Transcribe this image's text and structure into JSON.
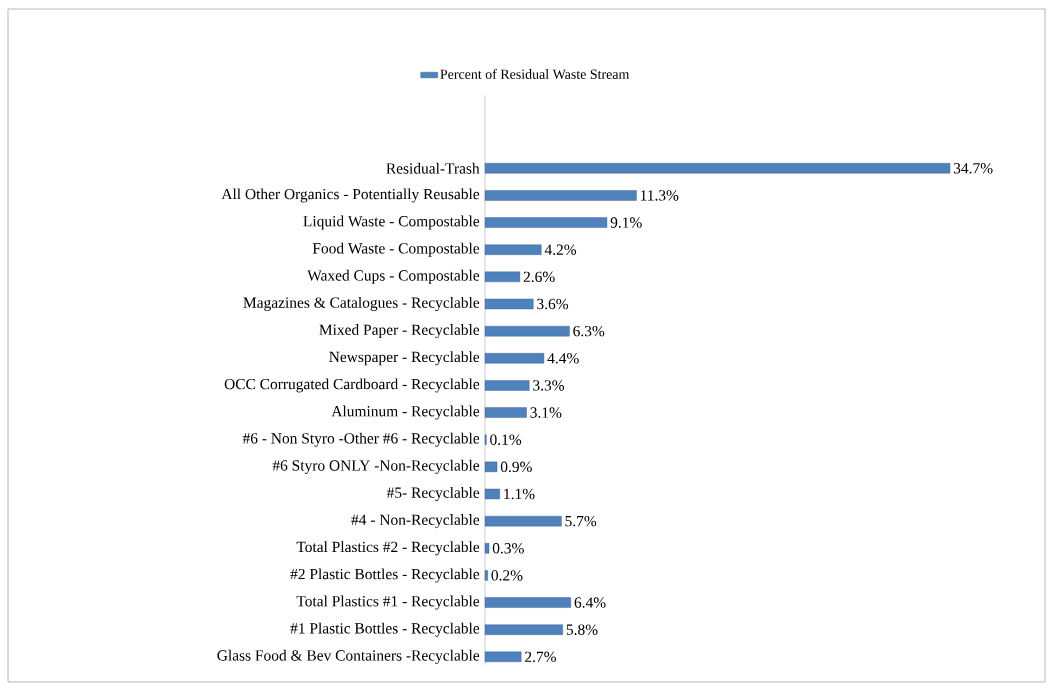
{
  "chart_data": {
    "type": "bar",
    "orientation": "horizontal",
    "legend": "top",
    "categories": [
      "Residual-Trash",
      "All Other Organics - Potentially Reusable",
      "Liquid Waste - Compostable",
      "Food Waste - Compostable",
      "Waxed Cups - Compostable",
      "Magazines & Catalogues - Recyclable",
      "Mixed Paper - Recyclable",
      "Newspaper - Recyclable",
      "OCC Corrugated Cardboard - Recyclable",
      "Aluminum - Recyclable",
      "#6 - Non Styro -Other #6 - Recyclable",
      "#6 Styro ONLY -Non-Recyclable",
      "#5- Recyclable",
      "#4  - Non-Recyclable",
      "Total Plastics #2 - Recyclable",
      "#2 Plastic Bottles - Recyclable",
      "Total Plastics #1 - Recyclable",
      "#1 Plastic Bottles - Recyclable",
      "Glass Food & Bev Containers -Recyclable"
    ],
    "series": [
      {
        "name": "Percent of Residual Waste Stream",
        "color": "#4f81bd",
        "values": [
          34.7,
          11.3,
          9.1,
          4.2,
          2.6,
          3.6,
          6.3,
          4.4,
          3.3,
          3.1,
          0.1,
          0.9,
          1.1,
          5.7,
          0.3,
          0.2,
          6.4,
          5.8,
          2.7
        ],
        "value_labels": [
          "34.7%",
          "11.3%",
          "9.1%",
          "4.2%",
          "2.6%",
          "3.6%",
          "6.3%",
          "4.4%",
          "3.3%",
          "3.1%",
          "0.1%",
          "0.9%",
          "1.1%",
          "5.7%",
          "0.3%",
          "0.2%",
          "6.4%",
          "5.8%",
          "2.7%"
        ]
      }
    ]
  }
}
